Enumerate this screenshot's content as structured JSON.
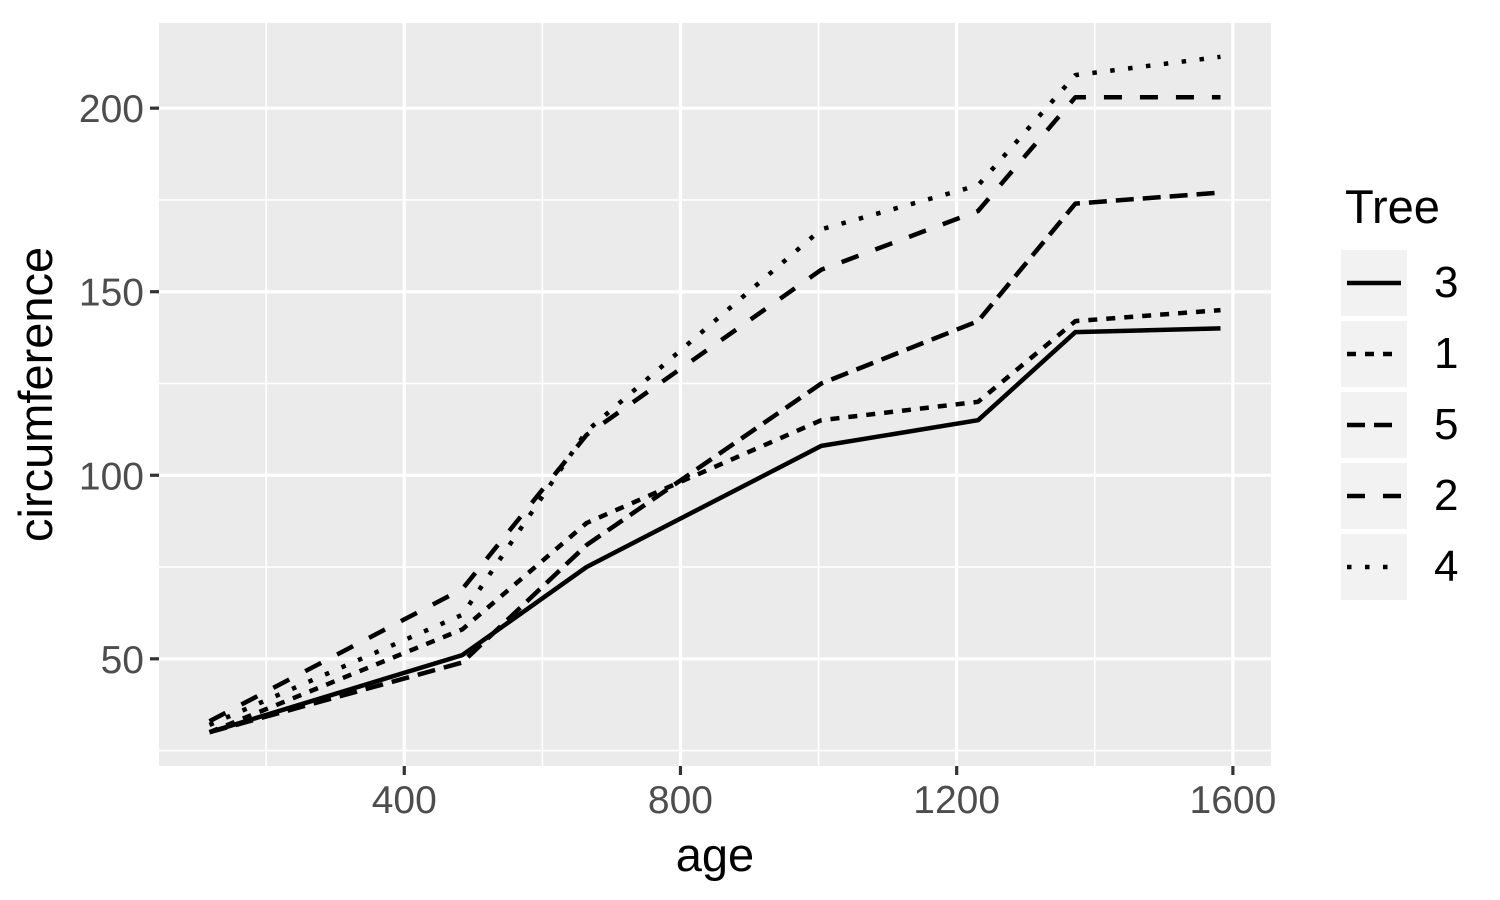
{
  "chart_data": {
    "type": "line",
    "x": [
      118,
      484,
      664,
      1004,
      1231,
      1372,
      1582
    ],
    "series": [
      {
        "name": "3",
        "linetype": "solid",
        "values": [
          30,
          51,
          75,
          108,
          115,
          139,
          140
        ]
      },
      {
        "name": "1",
        "linetype": "22",
        "values": [
          30,
          58,
          87,
          115,
          120,
          142,
          145
        ]
      },
      {
        "name": "5",
        "linetype": "42",
        "values": [
          30,
          49,
          81,
          125,
          142,
          174,
          177
        ]
      },
      {
        "name": "2",
        "linetype": "44",
        "values": [
          33,
          69,
          111,
          156,
          172,
          203,
          203
        ]
      },
      {
        "name": "4",
        "linetype": "13",
        "values": [
          32,
          62,
          112,
          167,
          179,
          209,
          214
        ]
      }
    ],
    "title": "",
    "xlabel": "age",
    "ylabel": "circumference",
    "legend_title": "Tree",
    "xlim": [
      44.8,
      1655.2
    ],
    "ylim": [
      20.8,
      223.2
    ],
    "x_ticks": [
      400,
      800,
      1200,
      1600
    ],
    "x_minor": [
      200,
      600,
      1000,
      1400
    ],
    "y_ticks": [
      50,
      100,
      150,
      200
    ],
    "y_minor": [
      25,
      75,
      125,
      175
    ],
    "grid": true,
    "legend_position": "right",
    "colors": {
      "panel": "#EBEBEB",
      "grid": "#FFFFFF",
      "legend_key": "#F2F2F2",
      "tick_text": "#4D4D4D",
      "tick_mark": "#333333",
      "line": "#000000"
    }
  }
}
